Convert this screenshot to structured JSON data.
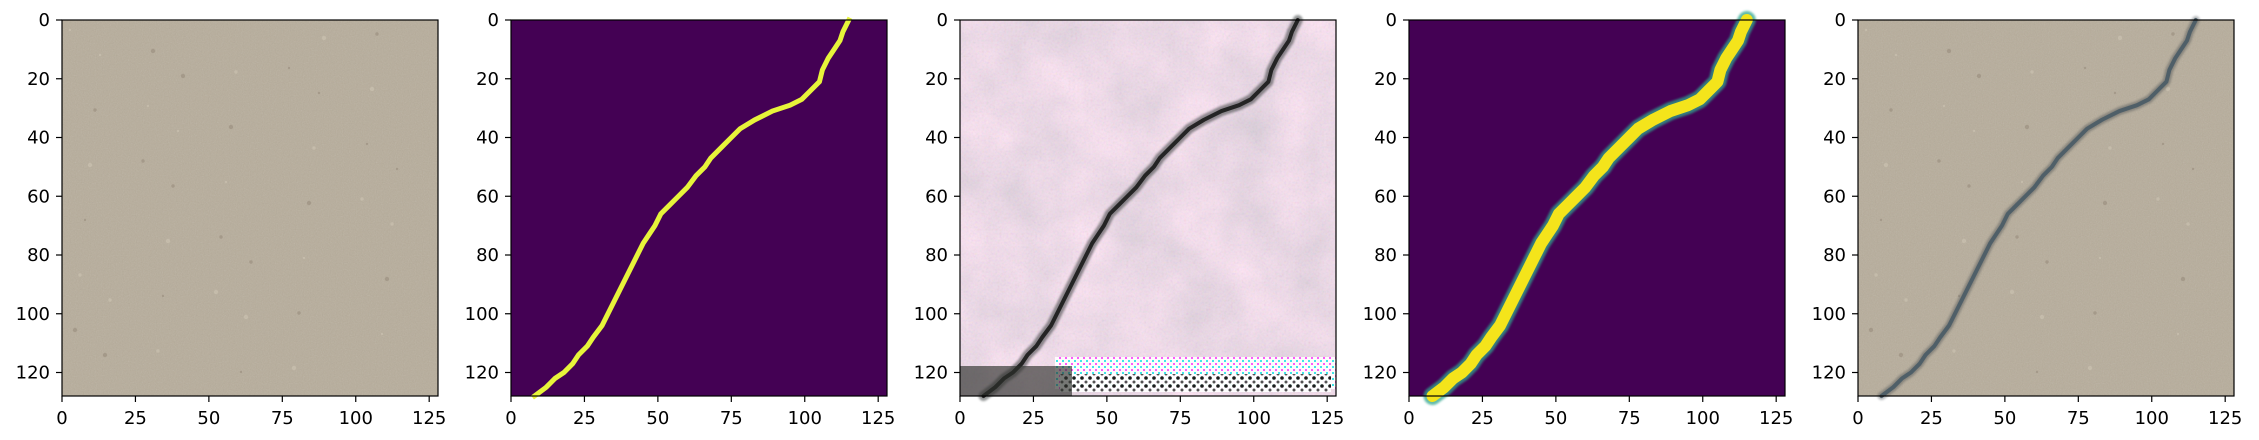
{
  "figure": {
    "panels": [
      {
        "id": "input-texture-image",
        "kind": "texture",
        "base_color": "#b7ad9b"
      },
      {
        "id": "ground-truth-mask",
        "kind": "mask-binary",
        "background": "#440154",
        "stroke": "#e7f43a"
      },
      {
        "id": "generated-artifact-image",
        "kind": "artifact",
        "background": "#d8c7d6",
        "stroke": "#444444"
      },
      {
        "id": "predicted-mask",
        "kind": "mask-soft",
        "background": "#440154",
        "stroke": "#f4e41b"
      },
      {
        "id": "overlay-texture-image",
        "kind": "overlay",
        "base_color": "#b7ad9b",
        "stroke": "#4f5f68"
      }
    ],
    "axis": {
      "x_ticks": [
        "0",
        "25",
        "50",
        "75",
        "100",
        "125"
      ],
      "y_ticks": [
        "0",
        "20",
        "40",
        "60",
        "80",
        "100",
        "120"
      ],
      "x_range": [
        0,
        128
      ],
      "y_range": [
        0,
        128
      ]
    }
  },
  "crack_path": {
    "points": [
      [
        115,
        0
      ],
      [
        113,
        4
      ],
      [
        112,
        7
      ],
      [
        110,
        10
      ],
      [
        108,
        13
      ],
      [
        106,
        17
      ],
      [
        105,
        21
      ],
      [
        102,
        24
      ],
      [
        99,
        27
      ],
      [
        95,
        29
      ],
      [
        89,
        31
      ],
      [
        83,
        34
      ],
      [
        78,
        37
      ],
      [
        75,
        40
      ],
      [
        72,
        43
      ],
      [
        68,
        47
      ],
      [
        66,
        50
      ],
      [
        63,
        53
      ],
      [
        60,
        57
      ],
      [
        57,
        60
      ],
      [
        54,
        63
      ],
      [
        51,
        66
      ],
      [
        49,
        70
      ],
      [
        47,
        73
      ],
      [
        45,
        76
      ],
      [
        43,
        80
      ],
      [
        41,
        84
      ],
      [
        39,
        88
      ],
      [
        37,
        92
      ],
      [
        35,
        96
      ],
      [
        33,
        100
      ],
      [
        31,
        104
      ],
      [
        28,
        108
      ],
      [
        26,
        111
      ],
      [
        23,
        114
      ],
      [
        21,
        117
      ],
      [
        18,
        120
      ],
      [
        15,
        122
      ],
      [
        12,
        125
      ],
      [
        8,
        128
      ]
    ]
  }
}
